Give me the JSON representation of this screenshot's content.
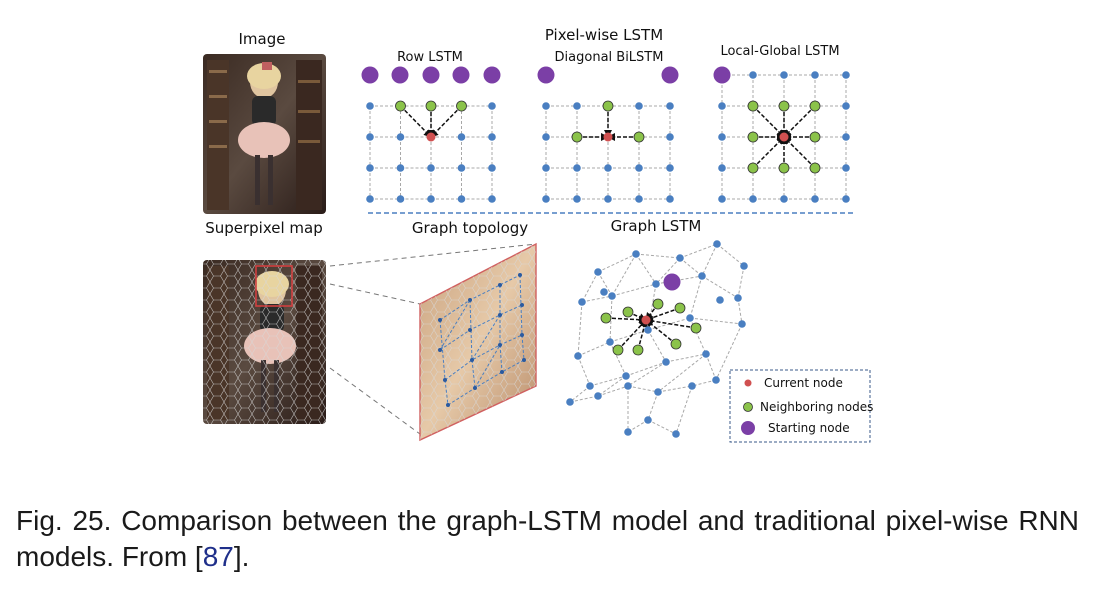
{
  "figure": {
    "labels": {
      "image": "Image",
      "pixel_wise": "Pixel-wise LSTM",
      "row": "Row LSTM",
      "diagonal": "Diagonal BiLSTM",
      "local_global": "Local-Global LSTM",
      "superpixel": "Superpixel map",
      "topology": "Graph topology",
      "graph_lstm": "Graph LSTM"
    },
    "legend": [
      {
        "label": "Current node",
        "color": "#d05050"
      },
      {
        "label": "Neighboring nodes",
        "color": "#8bc34a"
      },
      {
        "label": "Starting node",
        "color": "#7b3fa6"
      }
    ],
    "colors": {
      "node": "#4a7fc1",
      "current": "#d05050",
      "neighbor": "#8bc34a",
      "start": "#7b3fa6",
      "edge": "#a8a8a8",
      "divider": "#4a7fc1"
    }
  },
  "caption": {
    "text": "Fig. 25. Comparison between the graph-LSTM model and traditional pixel-wise RNN models. From [",
    "ref": "87",
    "end": "]."
  }
}
